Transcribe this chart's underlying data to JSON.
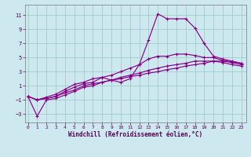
{
  "xlabel": "Windchill (Refroidissement éolien,°C)",
  "background_color": "#cde8ee",
  "grid_color": "#a0cccc",
  "line_color": "#880088",
  "xticks": [
    0,
    1,
    2,
    3,
    4,
    5,
    6,
    7,
    8,
    9,
    10,
    11,
    12,
    13,
    14,
    15,
    16,
    17,
    18,
    19,
    20,
    21,
    22,
    23
  ],
  "yticks": [
    -3,
    -1,
    1,
    3,
    5,
    7,
    9,
    11
  ],
  "ylim": [
    -4.2,
    12.5
  ],
  "xlim": [
    -0.3,
    23.5
  ],
  "series": [
    [
      -0.5,
      -3.3,
      -1.0,
      -0.8,
      -0.3,
      0.2,
      0.8,
      1.0,
      1.5,
      1.8,
      2.2,
      2.5,
      2.8,
      3.2,
      3.5,
      3.8,
      4.0,
      4.2,
      4.5,
      4.5,
      4.5,
      4.3,
      4.0,
      3.8
    ],
    [
      -0.5,
      -1.0,
      -0.8,
      -0.5,
      0.0,
      0.4,
      1.0,
      1.3,
      1.5,
      1.8,
      2.0,
      2.3,
      2.5,
      2.8,
      3.0,
      3.3,
      3.5,
      3.8,
      4.0,
      4.2,
      4.5,
      4.5,
      4.3,
      4.0
    ],
    [
      -0.5,
      -1.0,
      -0.8,
      -0.5,
      0.2,
      0.8,
      1.3,
      1.5,
      2.2,
      1.8,
      1.5,
      2.0,
      4.0,
      7.5,
      11.2,
      10.5,
      10.5,
      10.5,
      9.2,
      7.0,
      5.2,
      4.8,
      4.5,
      4.2
    ],
    [
      -0.5,
      -1.0,
      -0.6,
      -0.2,
      0.5,
      1.2,
      1.5,
      2.0,
      2.2,
      2.5,
      3.0,
      3.5,
      4.0,
      4.8,
      5.2,
      5.2,
      5.5,
      5.5,
      5.3,
      5.0,
      5.0,
      4.6,
      4.4,
      4.2
    ]
  ]
}
